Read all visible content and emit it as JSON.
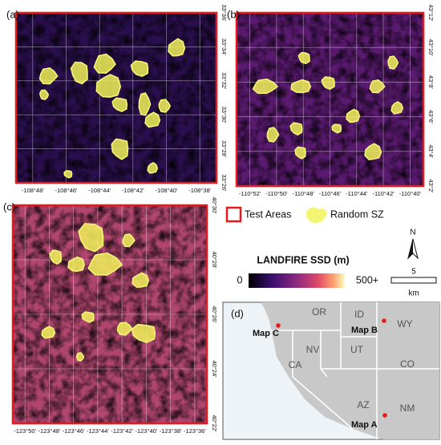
{
  "panels": [
    {
      "label": "(a)",
      "x_labels": [
        "-108°48'",
        "-108°46'",
        "-108°44'",
        "-108°42'",
        "-108°40'",
        "-108°38'"
      ],
      "y_labels": [
        "33°36'",
        "33°34'",
        "33°32'",
        "33°30'",
        "33°28'",
        "33°26'"
      ]
    },
    {
      "label": "(b)",
      "x_labels": [
        "-110°52'",
        "-110°50'",
        "-110°48'",
        "-110°46'",
        "-110°44'",
        "-110°42'",
        "-110°40'"
      ],
      "y_labels": [
        "43°12'",
        "43°10'",
        "43°8'",
        "43°6'",
        "43°4'",
        "43°2'"
      ]
    },
    {
      "label": "(c)",
      "x_labels": [
        "-123°50'",
        "-123°48'",
        "-123°46'",
        "-123°44'",
        "-123°42'",
        "-123°40'",
        "-123°38'",
        "-123°36'"
      ],
      "y_labels": [
        "40°30'",
        "40°28'",
        "40°26'",
        "40°24'",
        "40°22'"
      ]
    }
  ],
  "legend": {
    "test_areas": "Test Areas",
    "random_sz": "Random SZ",
    "colorbar_title": "LANDFIRE SSD (m)",
    "colorbar_min": "0",
    "colorbar_max": "500+",
    "north": "N",
    "scale_value": "5",
    "scale_unit": "km"
  },
  "overview": {
    "label": "(d)",
    "states": [
      "OR",
      "ID",
      "WY",
      "NV",
      "UT",
      "CO",
      "CA",
      "AZ",
      "NM"
    ],
    "maps": [
      "Map A",
      "Map B",
      "Map C"
    ]
  }
}
